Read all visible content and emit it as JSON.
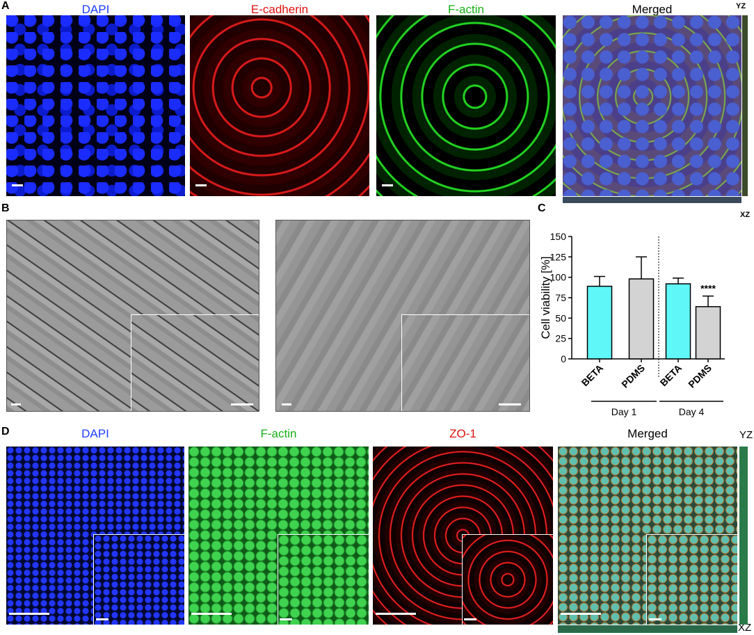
{
  "panels": {
    "A": {
      "label": "A",
      "titles": [
        "DAPI",
        "E-cadherin",
        "F-actin",
        "Merged"
      ],
      "yz": "YZ",
      "xz": "XZ"
    },
    "B": {
      "label": "B"
    },
    "C": {
      "label": "C"
    },
    "D": {
      "label": "D",
      "titles": [
        "DAPI",
        "F-actin",
        "ZO-1",
        "Merged"
      ],
      "yz": "YZ",
      "xz": "XZ"
    }
  },
  "chart_data": {
    "type": "bar",
    "y_label": "Cell viability [%]",
    "categories": [
      "BETA",
      "PDMS",
      "BETA",
      "PDMS"
    ],
    "values": [
      89,
      98,
      92,
      64
    ],
    "errors": [
      12,
      27,
      7,
      13
    ],
    "colors": [
      "#5ff7f7",
      "#d3d3d3",
      "#5ff7f7",
      "#d3d3d3"
    ],
    "groups": [
      "Day 1",
      "Day 4"
    ],
    "annotation": "****",
    "ylim": [
      0,
      150
    ],
    "yticks": [
      0,
      25,
      50,
      75,
      100,
      125,
      150
    ]
  }
}
